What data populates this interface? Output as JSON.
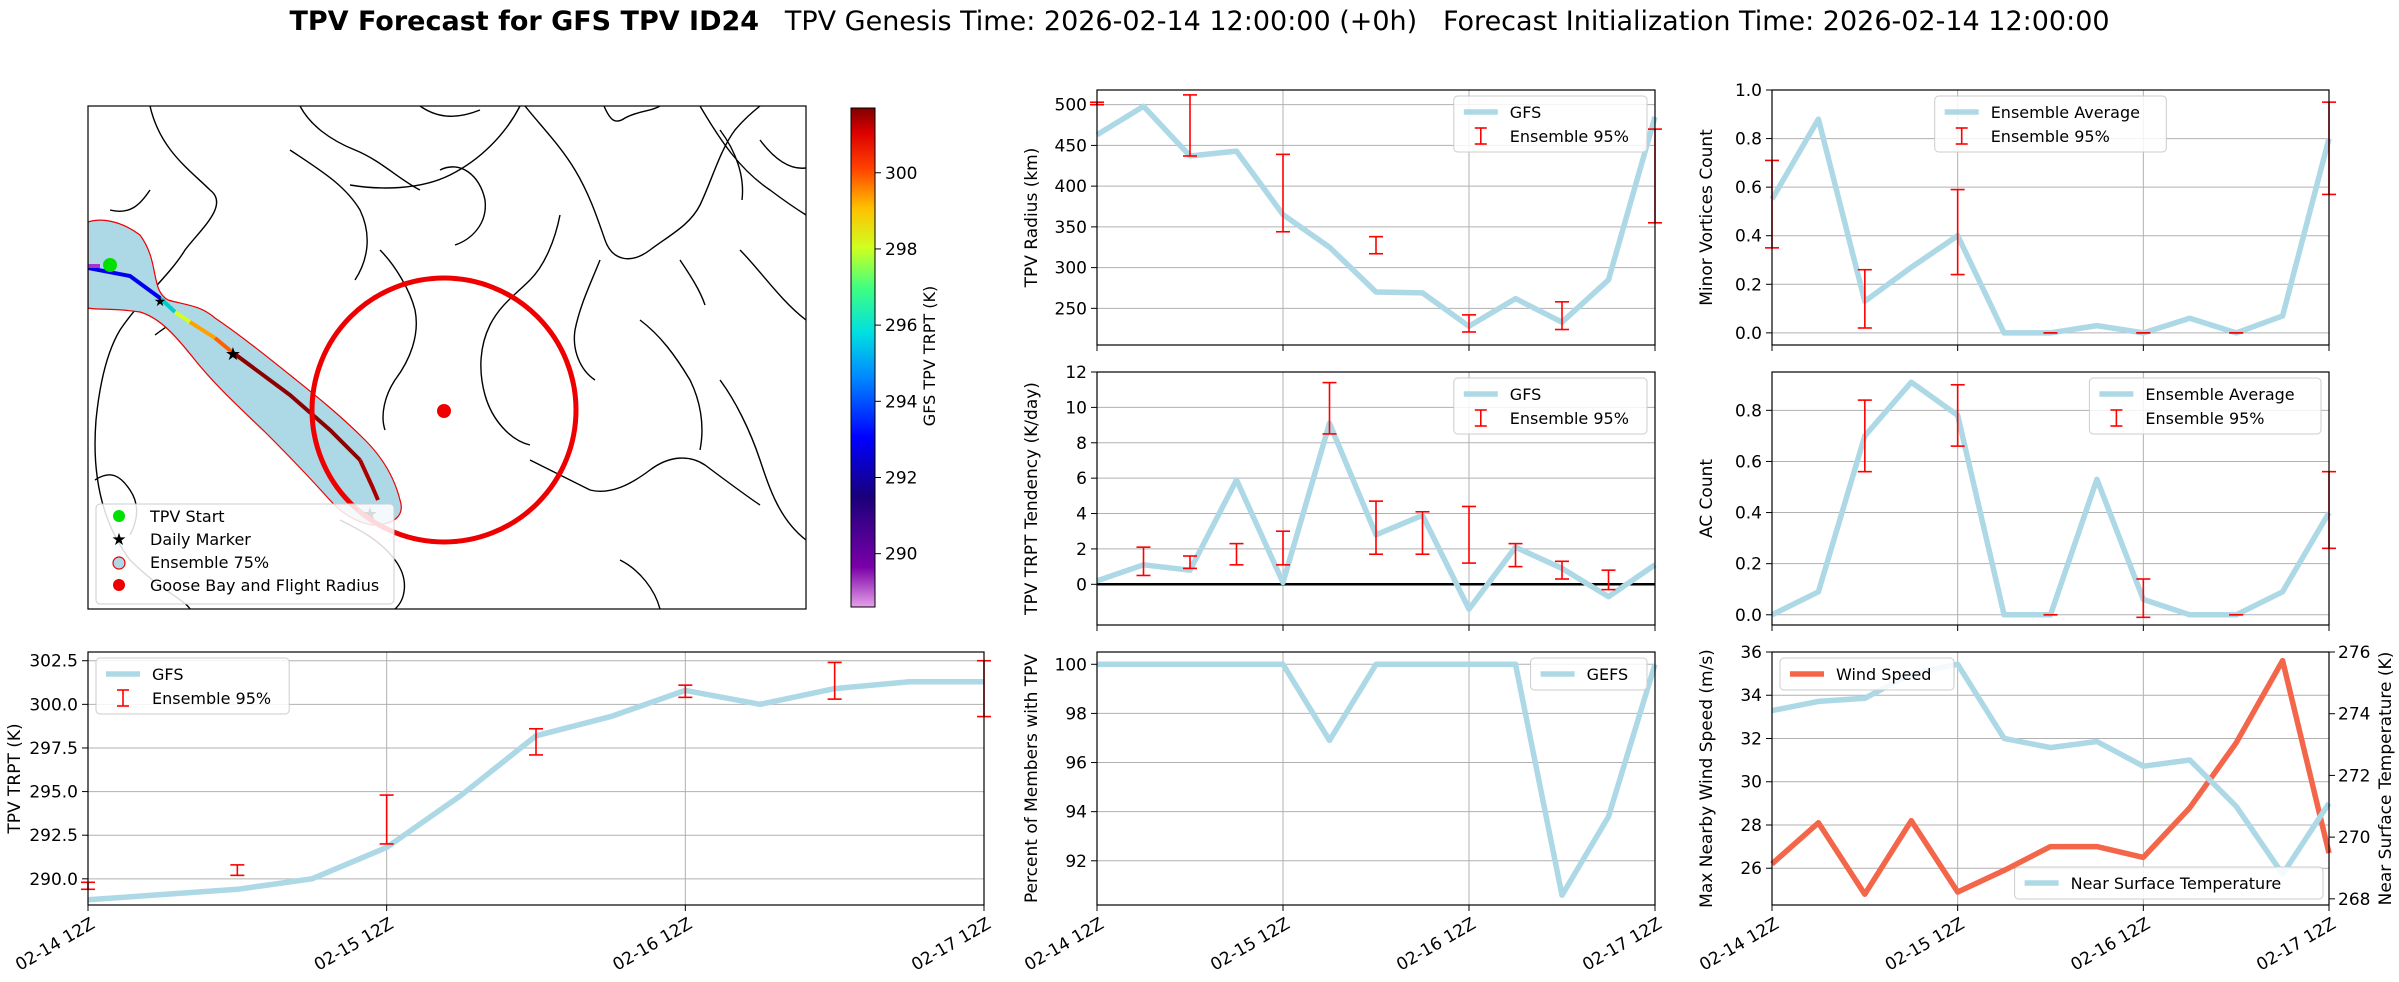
{
  "header": {
    "title_main": "TPV Forecast for GFS TPV ID24",
    "genesis": "TPV Genesis Time: 2026-02-14 12:00:00 (+0h)",
    "init": "Forecast Initialization Time: 2026-02-14 12:00:00"
  },
  "x_ticks": [
    "02-14 12Z",
    "02-15 12Z",
    "02-16 12Z",
    "02-17 12Z"
  ],
  "map": {
    "colorbar_label": "GFS TPV TRPT (K)",
    "colorbar_ticks": [
      290,
      292,
      294,
      296,
      298,
      300
    ],
    "colorbar_range": [
      288.6,
      301.7
    ],
    "legend": [
      "TPV Start",
      "Daily Marker",
      "Ensemble 75%",
      "Goose Bay and Flight Radius"
    ],
    "colors": {
      "start": "#00e000",
      "daily": "#ee00ee",
      "ensemble": "#add8e6",
      "goose": "#ee0000"
    }
  },
  "colors": {
    "line": "#add8e6",
    "error": "#ff0000",
    "wind": "#f4664a",
    "temp_axis": "#3366dd"
  },
  "chart_data": [
    {
      "id": "radius",
      "type": "line",
      "title": "",
      "xlabel": "",
      "ylabel": "TPV Radius (km)",
      "ylim": [
        205,
        518
      ],
      "yticks": [
        250,
        300,
        350,
        400,
        450,
        500
      ],
      "legend_loc": "top-right",
      "series": [
        {
          "name": "GFS",
          "x": [
            0,
            0.25,
            0.5,
            0.75,
            1,
            1.25,
            1.5,
            1.75,
            2,
            2.25,
            2.5,
            2.75,
            3
          ],
          "values": [
            463,
            498,
            437,
            443,
            365,
            325,
            270,
            269,
            228,
            262,
            233,
            285,
            485
          ]
        }
      ],
      "errorbars": {
        "name": "Ensemble 95%",
        "x": [
          0,
          0.5,
          1,
          1.5,
          2,
          2.5,
          3
        ],
        "low": [
          500,
          437,
          344,
          317,
          221,
          224,
          355
        ],
        "high": [
          503,
          512,
          439,
          338,
          242,
          258,
          470
        ]
      }
    },
    {
      "id": "minor",
      "type": "line",
      "title": "",
      "xlabel": "",
      "ylabel": "Minor Vortices Count",
      "ylim": [
        -0.05,
        1.0
      ],
      "yticks": [
        0.0,
        0.2,
        0.4,
        0.6,
        0.8,
        1.0
      ],
      "legend_loc": "top-center",
      "series": [
        {
          "name": "Ensemble Average",
          "x": [
            0,
            0.25,
            0.5,
            0.75,
            1,
            1.25,
            1.5,
            1.75,
            2,
            2.25,
            2.5,
            2.75,
            3
          ],
          "values": [
            0.55,
            0.88,
            0.13,
            0.27,
            0.4,
            0,
            0,
            0.03,
            0,
            0.06,
            0,
            0.07,
            0.8
          ]
        }
      ],
      "errorbars": {
        "name": "Ensemble 95%",
        "x": [
          0,
          0.5,
          1,
          1.5,
          2,
          2.5,
          3
        ],
        "low": [
          0.35,
          0.02,
          0.24,
          0,
          0,
          0,
          0.57
        ],
        "high": [
          0.71,
          0.26,
          0.59,
          0,
          0,
          0,
          0.95
        ]
      }
    },
    {
      "id": "tendency",
      "type": "line",
      "title": "",
      "xlabel": "",
      "ylabel": "TPV TRPT Tendency (K/day)",
      "ylim": [
        -2.3,
        12
      ],
      "yticks": [
        0,
        2,
        4,
        6,
        8,
        10,
        12
      ],
      "legend_loc": "top-right",
      "zero_line": true,
      "series": [
        {
          "name": "GFS",
          "x": [
            0,
            0.25,
            0.5,
            0.75,
            1,
            1.25,
            1.5,
            1.75,
            2,
            2.25,
            2.5,
            2.75,
            3
          ],
          "values": [
            0.2,
            1.1,
            0.8,
            5.9,
            0.1,
            9.1,
            2.8,
            3.9,
            -1.4,
            2.1,
            0.9,
            -0.7,
            1.1
          ]
        }
      ],
      "errorbars": {
        "name": "Ensemble 95%",
        "x": [
          0.25,
          0.5,
          0.75,
          1,
          1.25,
          1.5,
          1.75,
          2,
          2.25,
          2.5,
          2.75
        ],
        "low": [
          0.5,
          0.9,
          1.1,
          1.1,
          8.5,
          1.7,
          1.7,
          1.2,
          1.0,
          0.3,
          -0.3
        ],
        "high": [
          2.1,
          1.6,
          2.3,
          3.0,
          11.4,
          4.7,
          4.1,
          4.4,
          2.3,
          1.3,
          0.8
        ]
      }
    },
    {
      "id": "ac",
      "type": "line",
      "title": "",
      "xlabel": "",
      "ylabel": "AC Count",
      "ylim": [
        -0.04,
        0.95
      ],
      "yticks": [
        0.0,
        0.2,
        0.4,
        0.6,
        0.8
      ],
      "legend_loc": "top-right",
      "series": [
        {
          "name": "Ensemble Average",
          "x": [
            0,
            0.25,
            0.5,
            0.75,
            1,
            1.25,
            1.5,
            1.75,
            2,
            2.25,
            2.5,
            2.75,
            3
          ],
          "values": [
            0,
            0.09,
            0.7,
            0.91,
            0.78,
            0,
            0,
            0.53,
            0.06,
            0,
            0,
            0.09,
            0.4
          ]
        }
      ],
      "errorbars": {
        "name": "Ensemble 95%",
        "x": [
          0.5,
          1,
          1.5,
          2,
          2.5,
          3
        ],
        "low": [
          0.56,
          0.66,
          0,
          -0.01,
          0,
          0.26
        ],
        "high": [
          0.84,
          0.9,
          0,
          0.14,
          0,
          0.56
        ]
      }
    },
    {
      "id": "trpt",
      "type": "line",
      "title": "",
      "xlabel": "",
      "ylabel": "TPV TRPT (K)",
      "ylim": [
        288.5,
        303.0
      ],
      "yticks": [
        290.0,
        292.5,
        295.0,
        297.5,
        300.0,
        302.5
      ],
      "legend_loc": "top-left",
      "series": [
        {
          "name": "GFS",
          "x": [
            0,
            0.25,
            0.5,
            0.75,
            1,
            1.25,
            1.5,
            1.75,
            2,
            2.25,
            2.5,
            2.75,
            3
          ],
          "values": [
            288.8,
            289.1,
            289.4,
            290.0,
            291.8,
            294.8,
            298.2,
            299.3,
            300.8,
            300.0,
            300.9,
            301.3,
            301.3
          ]
        }
      ],
      "errorbars": {
        "name": "Ensemble 95%",
        "x": [
          0,
          0.5,
          1,
          1.5,
          2,
          2.5,
          3
        ],
        "low": [
          289.4,
          290.2,
          292.0,
          297.1,
          300.4,
          300.3,
          299.3
        ],
        "high": [
          289.8,
          290.8,
          294.8,
          298.6,
          301.1,
          302.4,
          302.5
        ]
      }
    },
    {
      "id": "members",
      "type": "line",
      "title": "",
      "xlabel": "",
      "ylabel": "Percent of Members with TPV",
      "ylim": [
        90.2,
        100.5
      ],
      "yticks": [
        92,
        94,
        96,
        98,
        100
      ],
      "legend_loc": "top-right",
      "series": [
        {
          "name": "GEFS",
          "x": [
            0,
            0.25,
            0.5,
            0.75,
            1,
            1.25,
            1.5,
            1.75,
            2,
            2.25,
            2.5,
            2.75,
            3
          ],
          "values": [
            100,
            100,
            100,
            100,
            100,
            96.9,
            100,
            100,
            100,
            100,
            90.6,
            93.8,
            100
          ]
        }
      ]
    },
    {
      "id": "wind_temp",
      "type": "line",
      "title": "",
      "xlabel": "",
      "ylabel": "Max Nearby Wind Speed (m/s)",
      "ylim": [
        24.3,
        36.0
      ],
      "yticks": [
        26,
        28,
        30,
        32,
        34,
        36
      ],
      "ylabel2": "Near Surface Temperature (K)",
      "ylim2": [
        267.8,
        276.0
      ],
      "yticks2": [
        268,
        270,
        272,
        274,
        276
      ],
      "series": [
        {
          "name": "Wind Speed",
          "axis": "left",
          "x": [
            0,
            0.25,
            0.5,
            0.75,
            1,
            1.25,
            1.5,
            1.75,
            2,
            2.25,
            2.5,
            2.75,
            3
          ],
          "values": [
            26.2,
            28.1,
            24.8,
            28.2,
            24.9,
            25.9,
            27.0,
            27.0,
            26.5,
            28.8,
            31.8,
            35.6,
            26.7
          ]
        },
        {
          "name": "Near Surface Temperature",
          "axis": "right",
          "x": [
            0,
            0.25,
            0.5,
            0.75,
            1,
            1.25,
            1.5,
            1.75,
            2,
            2.25,
            2.5,
            2.75,
            3
          ],
          "values": [
            274.1,
            274.4,
            274.5,
            275.3,
            275.6,
            273.2,
            272.9,
            273.1,
            272.3,
            272.5,
            271.0,
            268.8,
            271.1
          ]
        }
      ]
    }
  ]
}
